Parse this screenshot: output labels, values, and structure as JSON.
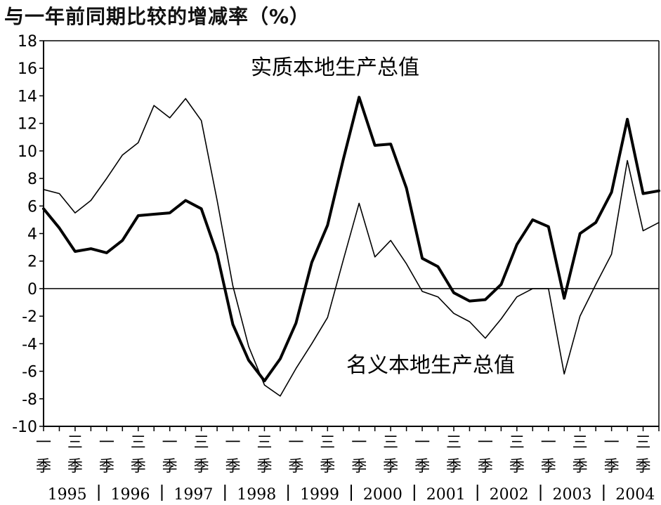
{
  "chart_data": {
    "type": "line",
    "title": "与一年前同期比较的增减率（%）",
    "ylim": [
      -10,
      18
    ],
    "yticks": [
      18,
      16,
      14,
      12,
      10,
      8,
      6,
      4,
      2,
      0,
      -2,
      -4,
      -6,
      -8,
      -10
    ],
    "quarter_labels": {
      "q1": "一季",
      "q3": "三季"
    },
    "years": [
      "1995",
      "1996",
      "1997",
      "1998",
      "1999",
      "2000",
      "2001",
      "2002",
      "2003",
      "2004"
    ],
    "x_categories": [
      "1995Q1",
      "1995Q2",
      "1995Q3",
      "1995Q4",
      "1996Q1",
      "1996Q2",
      "1996Q3",
      "1996Q4",
      "1997Q1",
      "1997Q2",
      "1997Q3",
      "1997Q4",
      "1998Q1",
      "1998Q2",
      "1998Q3",
      "1998Q4",
      "1999Q1",
      "1999Q2",
      "1999Q3",
      "1999Q4",
      "2000Q1",
      "2000Q2",
      "2000Q3",
      "2000Q4",
      "2001Q1",
      "2001Q2",
      "2001Q3",
      "2001Q4",
      "2002Q1",
      "2002Q2",
      "2002Q3",
      "2002Q4",
      "2003Q1",
      "2003Q2",
      "2003Q3",
      "2003Q4",
      "2004Q1",
      "2004Q2",
      "2004Q3",
      "2004Q4"
    ],
    "series": [
      {
        "name": "实质本地生产总值",
        "style": "thick",
        "color": "#000000",
        "values": [
          5.8,
          4.4,
          2.7,
          2.9,
          2.6,
          3.5,
          5.3,
          5.4,
          5.5,
          6.4,
          5.8,
          2.5,
          -2.6,
          -5.2,
          -6.7,
          -5.1,
          -2.5,
          1.9,
          4.6,
          9.4,
          13.9,
          10.4,
          10.5,
          7.3,
          2.2,
          1.6,
          -0.3,
          -0.9,
          -0.8,
          0.3,
          3.2,
          5.0,
          4.5,
          -0.7,
          4.0,
          4.8,
          7.0,
          12.3,
          6.9,
          7.1
        ]
      },
      {
        "name": "名义本地生产总值",
        "style": "thin",
        "color": "#000000",
        "values": [
          7.2,
          6.9,
          5.5,
          6.4,
          8.0,
          9.7,
          10.6,
          13.3,
          12.4,
          13.8,
          12.2,
          6.4,
          0.2,
          -4.2,
          -7.0,
          -7.8,
          -5.8,
          -4.0,
          -2.1,
          2.1,
          6.2,
          2.3,
          3.5,
          1.8,
          -0.2,
          -0.6,
          -1.8,
          -2.4,
          -3.6,
          -2.2,
          -0.6,
          0.0,
          0.0,
          -6.2,
          -2.0,
          0.3,
          2.5,
          9.3,
          4.2,
          4.8
        ]
      }
    ],
    "zero_line": true,
    "grid": false
  }
}
